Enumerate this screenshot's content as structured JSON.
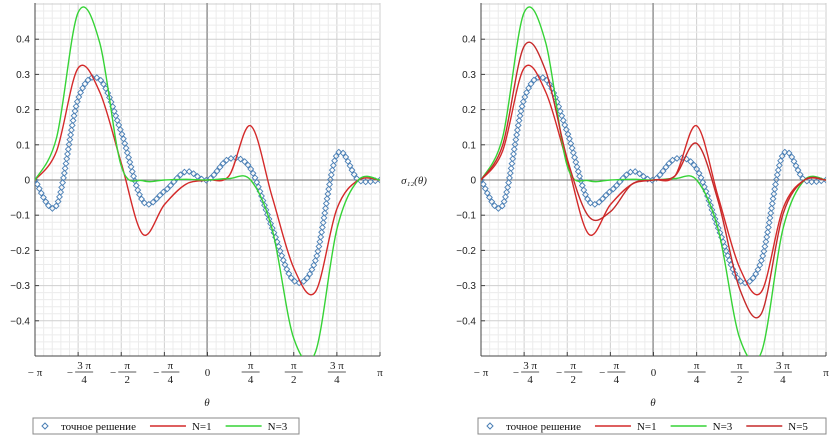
{
  "chart_data": [
    {
      "type": "line",
      "title": "",
      "xlabel": "θ",
      "ylabel": "",
      "xlim": [
        -3.14159,
        3.14159
      ],
      "ylim": [
        -0.5,
        0.5
      ],
      "yticks": [
        "0.4",
        "0.3",
        "0.2",
        "0.1",
        "0",
        "-0.1",
        "-0.2",
        "-0.3",
        "-0.4"
      ],
      "xticks": [
        {
          "sign": "−",
          "num": "π",
          "den": ""
        },
        {
          "sign": "−",
          "num": "3 π",
          "den": "4"
        },
        {
          "sign": "−",
          "num": "π",
          "den": "2"
        },
        {
          "sign": "−",
          "num": "π",
          "den": "4"
        },
        {
          "sign": "",
          "num": "0",
          "den": ""
        },
        {
          "sign": "",
          "num": "π",
          "den": "4"
        },
        {
          "sign": "",
          "num": "π",
          "den": "2"
        },
        {
          "sign": "",
          "num": "3 π",
          "den": "4"
        },
        {
          "sign": "",
          "num": "π",
          "den": ""
        }
      ],
      "grid": true,
      "legend_position": "bottom",
      "series": [
        {
          "name": "точное решение",
          "style": "diamond-markers",
          "color": "#4a7fb5",
          "x": [
            -3.142,
            -2.749,
            -2.356,
            -1.963,
            -1.571,
            -1.178,
            -0.785,
            -0.393,
            0,
            0.393,
            0.785,
            1.178,
            1.571,
            1.963,
            2.356,
            2.749,
            3.142
          ],
          "y": [
            0,
            -0.072,
            0.23,
            0.286,
            0.136,
            -0.06,
            -0.032,
            0.024,
            0,
            0.06,
            0.032,
            -0.136,
            -0.286,
            -0.23,
            0.072,
            0,
            0
          ]
        },
        {
          "name": "N=1",
          "style": "line",
          "color": "#d42a2a",
          "x": [
            -3.142,
            -2.749,
            -2.356,
            -1.963,
            -1.571,
            -1.178,
            -0.785,
            -0.393,
            0,
            0.393,
            0.785,
            1.178,
            1.571,
            1.963,
            2.356,
            2.749,
            3.142
          ],
          "y": [
            0,
            0.082,
            0.318,
            0.25,
            0.048,
            -0.154,
            -0.07,
            -0.012,
            0,
            0.012,
            0.154,
            -0.048,
            -0.25,
            -0.318,
            -0.082,
            0,
            0
          ]
        },
        {
          "name": "N=3",
          "style": "line",
          "color": "#36d336",
          "x": [
            -3.142,
            -2.749,
            -2.356,
            -1.963,
            -1.571,
            -1.178,
            -0.785,
            -0.393,
            0,
            0.393,
            0.785,
            1.178,
            1.571,
            1.963,
            2.356,
            2.749,
            3.142
          ],
          "y": [
            0,
            0.12,
            0.476,
            0.39,
            0.04,
            -0.002,
            0,
            0.002,
            0,
            0.004,
            0,
            -0.14,
            -0.45,
            -0.49,
            -0.14,
            0,
            0
          ]
        }
      ]
    },
    {
      "type": "line",
      "title": "",
      "xlabel": "θ",
      "ylabel": "σ₁₂(θ)",
      "xlim": [
        -3.14159,
        3.14159
      ],
      "ylim": [
        -0.5,
        0.5
      ],
      "yticks": [
        "0.4",
        "0.3",
        "0.2",
        "0.1",
        "0",
        "-0.1",
        "-0.2",
        "-0.3",
        "-0.4"
      ],
      "xticks": [
        {
          "sign": "−",
          "num": "π",
          "den": ""
        },
        {
          "sign": "−",
          "num": "3 π",
          "den": "4"
        },
        {
          "sign": "−",
          "num": "π",
          "den": "2"
        },
        {
          "sign": "−",
          "num": "π",
          "den": "4"
        },
        {
          "sign": "",
          "num": "0",
          "den": ""
        },
        {
          "sign": "",
          "num": "π",
          "den": "4"
        },
        {
          "sign": "",
          "num": "π",
          "den": "2"
        },
        {
          "sign": "",
          "num": "3 π",
          "den": "4"
        },
        {
          "sign": "",
          "num": "π",
          "den": ""
        }
      ],
      "grid": true,
      "legend_position": "bottom",
      "series": [
        {
          "name": "точное решение",
          "style": "diamond-markers",
          "color": "#4a7fb5",
          "x": [
            -3.142,
            -2.749,
            -2.356,
            -1.963,
            -1.571,
            -1.178,
            -0.785,
            -0.393,
            0,
            0.393,
            0.785,
            1.178,
            1.571,
            1.963,
            2.356,
            2.749,
            3.142
          ],
          "y": [
            0,
            -0.072,
            0.23,
            0.286,
            0.136,
            -0.06,
            -0.032,
            0.024,
            0,
            0.06,
            0.032,
            -0.136,
            -0.286,
            -0.23,
            0.072,
            0,
            0
          ]
        },
        {
          "name": "N=1",
          "style": "line",
          "color": "#d42a2a",
          "x": [
            -3.142,
            -2.749,
            -2.356,
            -1.963,
            -1.571,
            -1.178,
            -0.785,
            -0.393,
            0,
            0.393,
            0.785,
            1.178,
            1.571,
            1.963,
            2.356,
            2.749,
            3.142
          ],
          "y": [
            0,
            0.082,
            0.318,
            0.25,
            0.048,
            -0.154,
            -0.07,
            -0.012,
            0,
            0.012,
            0.154,
            -0.048,
            -0.25,
            -0.318,
            -0.082,
            0,
            0
          ]
        },
        {
          "name": "N=3",
          "style": "line",
          "color": "#36d336",
          "x": [
            -3.142,
            -2.749,
            -2.356,
            -1.963,
            -1.571,
            -1.178,
            -0.785,
            -0.393,
            0,
            0.393,
            0.785,
            1.178,
            1.571,
            1.963,
            2.356,
            2.749,
            3.142
          ],
          "y": [
            0,
            0.12,
            0.476,
            0.39,
            0.04,
            -0.002,
            0,
            0.002,
            0,
            0.004,
            0,
            -0.14,
            -0.45,
            -0.49,
            -0.14,
            0,
            0
          ]
        },
        {
          "name": "N=5",
          "style": "line",
          "color": "#c62a2a",
          "x": [
            -3.142,
            -2.749,
            -2.356,
            -1.963,
            -1.571,
            -1.178,
            -0.785,
            -0.393,
            0,
            0.393,
            0.785,
            1.178,
            1.571,
            1.963,
            2.356,
            2.749,
            3.142
          ],
          "y": [
            0,
            0.098,
            0.38,
            0.31,
            0.06,
            -0.104,
            -0.09,
            -0.012,
            0,
            0.012,
            0.104,
            -0.06,
            -0.31,
            -0.38,
            -0.098,
            0,
            0
          ]
        }
      ]
    }
  ]
}
